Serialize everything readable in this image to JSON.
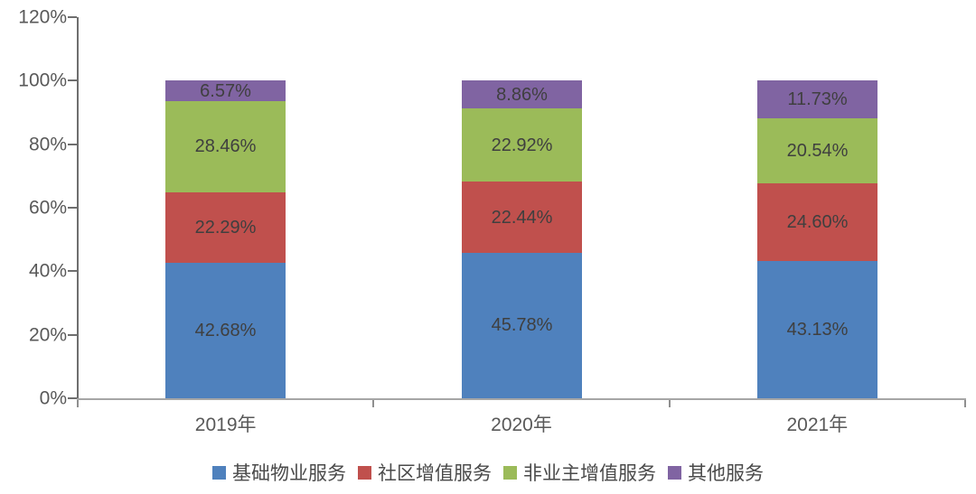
{
  "chart_data": {
    "type": "bar",
    "stacked": true,
    "title": "",
    "categories": [
      "2019年",
      "2020年",
      "2021年"
    ],
    "series": [
      {
        "name": "基础物业服务",
        "color": "#4F81BD",
        "values": [
          42.68,
          45.78,
          43.13
        ]
      },
      {
        "name": "社区增值服务",
        "color": "#C0504D",
        "values": [
          22.29,
          22.44,
          24.6
        ]
      },
      {
        "name": "非业主增值服务",
        "color": "#9BBB59",
        "values": [
          28.46,
          22.92,
          20.54
        ]
      },
      {
        "name": "其他服务",
        "color": "#8064A2",
        "values": [
          6.57,
          8.86,
          11.73
        ]
      }
    ],
    "data_labels": [
      [
        "42.68%",
        "45.78%",
        "43.13%"
      ],
      [
        "22.29%",
        "22.44%",
        "24.60%"
      ],
      [
        "28.46%",
        "22.92%",
        "20.54%"
      ],
      [
        "6.57%",
        "8.86%",
        "11.73%"
      ]
    ],
    "y_axis": {
      "min": 0,
      "max": 120,
      "step": 20,
      "tick_labels": [
        "0%",
        "20%",
        "40%",
        "60%",
        "80%",
        "100%",
        "120%"
      ]
    },
    "x_axis": {
      "tick_labels": [
        "2019年",
        "2020年",
        "2021年"
      ]
    },
    "legend_position": "bottom",
    "grid": false
  },
  "style": {
    "background": "#ffffff",
    "y_axis_line_color": "#6e6e6e",
    "x_axis_line_color": "#a6a6a6",
    "tick_color": "#8f8f8f",
    "axis_label_color": "#595959",
    "data_label_color": "#3f3f3f",
    "legend_label_color": "#4a4a4a"
  }
}
